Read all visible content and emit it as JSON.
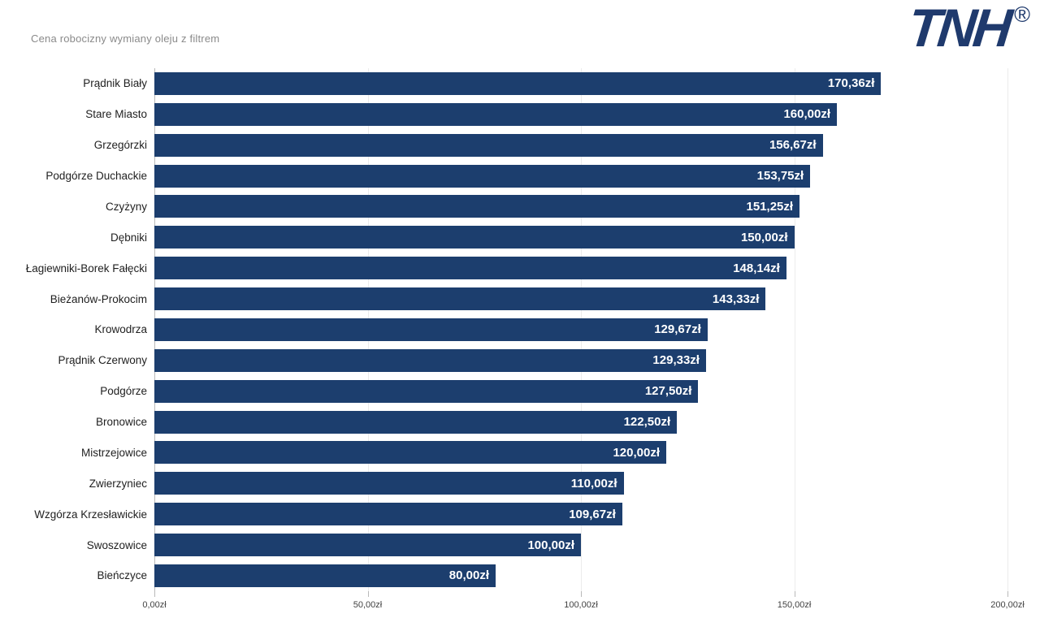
{
  "header": {
    "title": "Cena robocizny wymiany oleju z filtrem"
  },
  "logo": {
    "text": "TNH",
    "registered": "®"
  },
  "colors": {
    "bar": "#1c3e6e",
    "logo": "#1f3a6d",
    "title": "#8a8a8a",
    "grid": "#ececec",
    "axis": "#b9b9b9",
    "tick_label": "#424242",
    "category_label": "#1f1f1f",
    "value_label": "#ffffff",
    "background": "#ffffff"
  },
  "chart_data": {
    "type": "bar",
    "orientation": "horizontal",
    "title": "Cena robocizny wymiany oleju z filtrem",
    "categories": [
      "Prądnik Biały",
      "Stare Miasto",
      "Grzegórzki",
      "Podgórze Duchackie",
      "Czyżyny",
      "Dębniki",
      "Łagiewniki-Borek Fałęcki",
      "Bieżanów-Prokocim",
      "Krowodrza",
      "Prądnik Czerwony",
      "Podgórze",
      "Bronowice",
      "Mistrzejowice",
      "Zwierzyniec",
      "Wzgórza Krzesławickie",
      "Swoszowice",
      "Bieńczyce"
    ],
    "values": [
      170.36,
      160.0,
      156.67,
      153.75,
      151.25,
      150.0,
      148.14,
      143.33,
      129.67,
      129.33,
      127.5,
      122.5,
      120.0,
      110.0,
      109.67,
      100.0,
      80.0
    ],
    "value_labels": [
      "170,36zł",
      "160,00zł",
      "156,67zł",
      "153,75zł",
      "151,25zł",
      "150,00zł",
      "148,14zł",
      "143,33zł",
      "129,67zł",
      "129,33zł",
      "127,50zł",
      "122,50zł",
      "120,00zł",
      "110,00zł",
      "109,67zł",
      "100,00zł",
      "80,00zł"
    ],
    "xlabel": "",
    "ylabel": "",
    "xlim": [
      0,
      200
    ],
    "x_ticks": [
      0,
      50,
      100,
      150,
      200
    ],
    "x_tick_labels": [
      "0,00zł",
      "50,00zł",
      "100,00zł",
      "150,00zł",
      "200,00zł"
    ],
    "grid": true,
    "legend": false
  }
}
